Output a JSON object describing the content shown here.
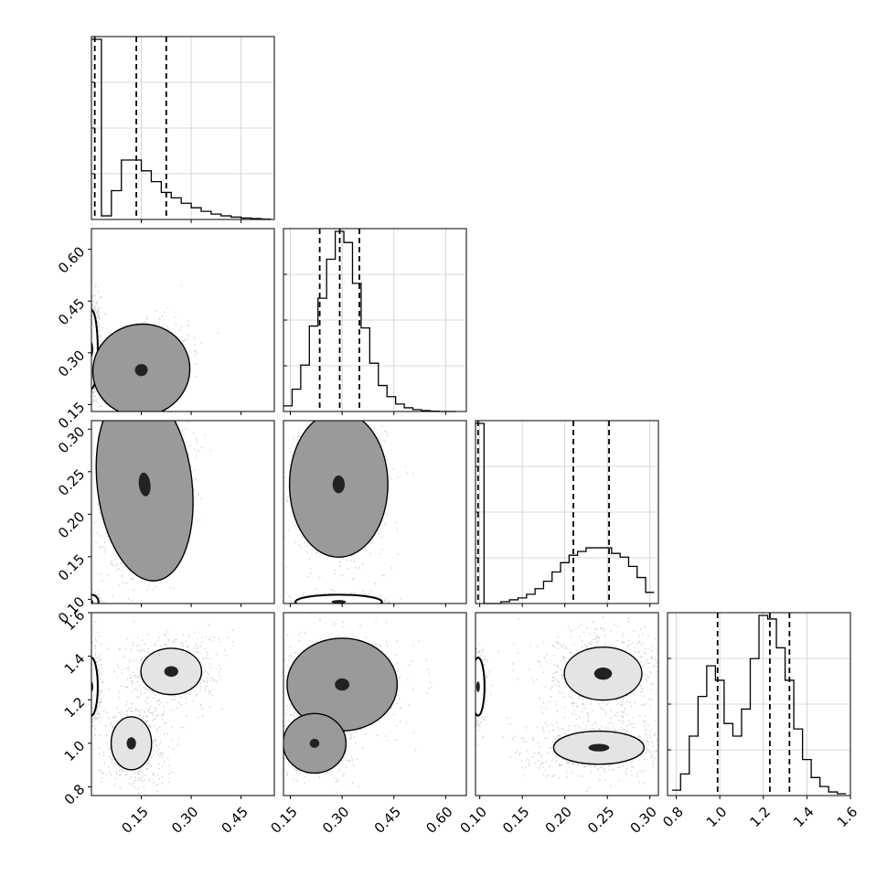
{
  "chart_data": {
    "type": "corner",
    "n_params": 4,
    "params": [
      {
        "range": [
          0.0,
          0.55
        ],
        "ticks": [
          "0.15",
          "0.30",
          "0.45"
        ],
        "tick_values": [
          0.15,
          0.3,
          0.45
        ],
        "quantiles": [
          0.01,
          0.135,
          0.225
        ]
      },
      {
        "range": [
          0.13,
          0.66
        ],
        "ticks": [
          "0.15",
          "0.30",
          "0.45",
          "0.60"
        ],
        "tick_values": [
          0.15,
          0.3,
          0.45,
          0.6
        ],
        "quantiles": [
          0.235,
          0.293,
          0.35
        ]
      },
      {
        "range": [
          0.095,
          0.31
        ],
        "ticks": [
          "0.10",
          "0.15",
          "0.20",
          "0.25",
          "0.30"
        ],
        "tick_values": [
          0.1,
          0.15,
          0.2,
          0.25,
          0.3
        ],
        "quantiles": [
          0.098,
          0.21,
          0.252
        ]
      },
      {
        "range": [
          0.76,
          1.6
        ],
        "ticks": [
          "0.8",
          "1.0",
          "1.2",
          "1.4",
          "1.6"
        ],
        "tick_values": [
          0.8,
          1.0,
          1.2,
          1.4,
          1.6
        ],
        "quantiles": [
          0.99,
          1.23,
          1.32
        ]
      }
    ],
    "histograms": [
      {
        "param": 0,
        "bins": [
          0.0,
          0.03,
          0.06,
          0.09,
          0.12,
          0.15,
          0.18,
          0.21,
          0.24,
          0.27,
          0.3,
          0.33,
          0.36,
          0.39,
          0.42,
          0.45,
          0.48,
          0.51,
          0.54
        ],
        "counts": [
          1.0,
          0.02,
          0.16,
          0.33,
          0.33,
          0.27,
          0.21,
          0.15,
          0.12,
          0.09,
          0.065,
          0.045,
          0.03,
          0.02,
          0.013,
          0.008,
          0.005,
          0.002
        ]
      },
      {
        "param": 1,
        "bins": [
          0.13,
          0.155,
          0.18,
          0.205,
          0.23,
          0.255,
          0.28,
          0.305,
          0.33,
          0.355,
          0.38,
          0.405,
          0.43,
          0.455,
          0.48,
          0.505,
          0.53,
          0.555,
          0.58,
          0.605,
          0.63
        ],
        "counts": [
          0.03,
          0.12,
          0.25,
          0.46,
          0.61,
          0.82,
          0.97,
          0.91,
          0.69,
          0.45,
          0.26,
          0.14,
          0.08,
          0.04,
          0.02,
          0.01,
          0.005,
          0.002,
          0.0,
          0.0
        ]
      },
      {
        "param": 2,
        "bins": [
          0.095,
          0.105,
          0.115,
          0.125,
          0.135,
          0.145,
          0.155,
          0.165,
          0.175,
          0.185,
          0.195,
          0.205,
          0.215,
          0.225,
          0.235,
          0.245,
          0.255,
          0.265,
          0.275,
          0.285,
          0.295,
          0.305
        ],
        "counts": [
          0.97,
          0.0,
          0.0,
          0.01,
          0.02,
          0.03,
          0.05,
          0.08,
          0.12,
          0.17,
          0.22,
          0.26,
          0.28,
          0.3,
          0.3,
          0.3,
          0.27,
          0.25,
          0.2,
          0.14,
          0.06
        ]
      },
      {
        "param": 3,
        "bins": [
          0.78,
          0.82,
          0.86,
          0.9,
          0.94,
          0.98,
          1.02,
          1.06,
          1.1,
          1.14,
          1.18,
          1.22,
          1.26,
          1.3,
          1.34,
          1.38,
          1.42,
          1.46,
          1.5,
          1.54,
          1.58
        ],
        "counts": [
          0.03,
          0.12,
          0.33,
          0.55,
          0.72,
          0.64,
          0.4,
          0.33,
          0.48,
          0.76,
          1.0,
          0.98,
          0.82,
          0.64,
          0.37,
          0.2,
          0.1,
          0.05,
          0.02,
          0.01
        ]
      }
    ],
    "panels_2d": [
      {
        "x": 0,
        "y": 1,
        "modes": [
          {
            "x": 0.0,
            "y": 0.31,
            "sx": 0.01,
            "sy": 0.06,
            "r": 0.0,
            "w": 0.45,
            "levels": [
              1.0
            ]
          },
          {
            "x": 0.15,
            "y": 0.25,
            "sx": 0.055,
            "sy": 0.05,
            "r": 0.4,
            "w": 0.55,
            "levels": [
              0.35,
              0.75,
              1.4
            ]
          }
        ]
      },
      {
        "x": 0,
        "y": 2,
        "modes": [
          {
            "x": 0.0,
            "y": 0.097,
            "sx": 0.01,
            "sy": 0.004,
            "r": 0.0,
            "w": 0.2,
            "levels": [
              1.1
            ]
          },
          {
            "x": 0.16,
            "y": 0.235,
            "sx": 0.05,
            "sy": 0.04,
            "r": 0.2,
            "w": 0.8,
            "levels": [
              0.45,
              1.0,
              1.5
            ]
          }
        ]
      },
      {
        "x": 1,
        "y": 2,
        "modes": [
          {
            "x": 0.29,
            "y": 0.097,
            "sx": 0.06,
            "sy": 0.004,
            "r": 0.0,
            "w": 0.2,
            "levels": [
              1.1
            ]
          },
          {
            "x": 0.29,
            "y": 0.235,
            "sx": 0.05,
            "sy": 0.03,
            "r": 0.0,
            "w": 0.8,
            "levels": [
              0.45,
              1.0,
              1.5
            ]
          }
        ]
      },
      {
        "x": 0,
        "y": 3,
        "modes": [
          {
            "x": 0.0,
            "y": 1.26,
            "sx": 0.01,
            "sy": 0.07,
            "r": 0.0,
            "w": 0.4,
            "levels": [
              1.0
            ]
          },
          {
            "x": 0.12,
            "y": 1.0,
            "sx": 0.04,
            "sy": 0.08,
            "r": 0.0,
            "w": 0.3,
            "levels": [
              0.35,
              0.8
            ]
          },
          {
            "x": 0.24,
            "y": 1.33,
            "sx": 0.06,
            "sy": 0.07,
            "r": 0.0,
            "w": 0.3,
            "levels": [
              0.35,
              0.8
            ]
          }
        ]
      },
      {
        "x": 1,
        "y": 3,
        "modes": [
          {
            "x": 0.3,
            "y": 1.27,
            "sx": 0.06,
            "sy": 0.08,
            "r": 0.0,
            "w": 0.6,
            "levels": [
              0.35,
              0.8,
              1.4
            ]
          },
          {
            "x": 0.22,
            "y": 1.0,
            "sx": 0.04,
            "sy": 0.06,
            "r": 0.0,
            "w": 0.4,
            "levels": [
              0.35,
              0.8,
              1.2
            ]
          }
        ]
      },
      {
        "x": 2,
        "y": 3,
        "modes": [
          {
            "x": 0.098,
            "y": 1.26,
            "sx": 0.004,
            "sy": 0.07,
            "r": 0.0,
            "w": 0.2,
            "levels": [
              1.0
            ]
          },
          {
            "x": 0.245,
            "y": 1.32,
            "sx": 0.03,
            "sy": 0.08,
            "r": 0.0,
            "w": 0.45,
            "levels": [
              0.35,
              0.8
            ]
          },
          {
            "x": 0.24,
            "y": 0.98,
            "sx": 0.035,
            "sy": 0.05,
            "r": 0.0,
            "w": 0.35,
            "levels": [
              0.35,
              0.8
            ]
          }
        ]
      }
    ],
    "grid": true
  }
}
